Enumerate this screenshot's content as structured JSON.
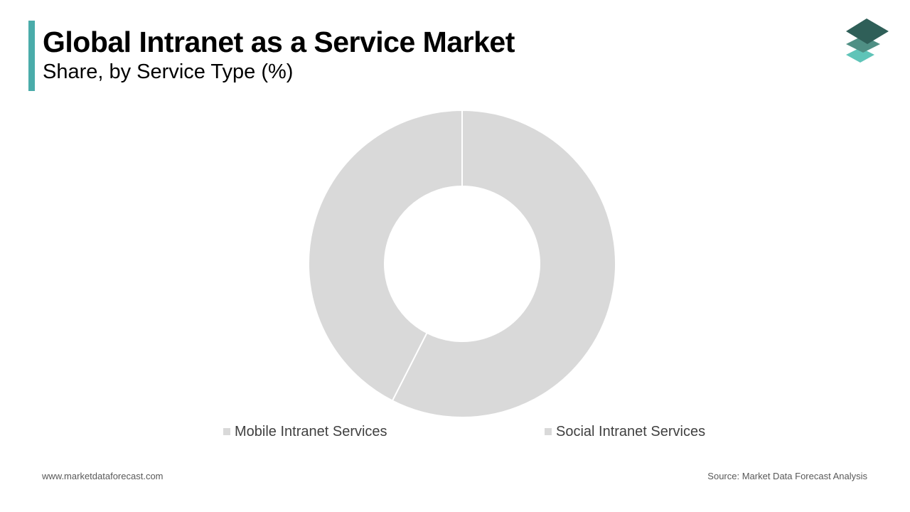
{
  "header": {
    "title": "Global Intranet as a Service Market",
    "subtitle": "Share, by Service Type (%)"
  },
  "colors": {
    "accent": "#4aacaa",
    "slice": "#d9d9d9",
    "slice_border": "#ffffff",
    "logo_dark": "#2f5f58",
    "logo_mid": "#4f8f84",
    "logo_light": "#5fc4b8"
  },
  "chart_data": {
    "type": "pie",
    "donut": true,
    "categories": [
      "Mobile Intranet Services",
      "Social Intranet Services"
    ],
    "values": [
      57.5,
      42.5
    ],
    "title": "Global Intranet as a Service Market",
    "subtitle": "Share, by Service Type (%)",
    "legend_position": "bottom"
  },
  "footer": {
    "website": "www.marketdataforecast.com",
    "source": "Source: Market Data Forecast Analysis"
  }
}
